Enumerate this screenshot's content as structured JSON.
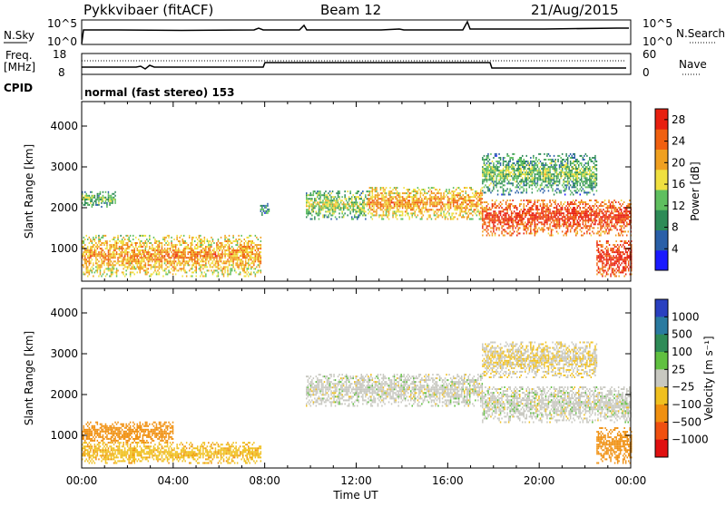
{
  "header": {
    "station": "Pykkvibaer (fitACF)",
    "beam": "Beam 12",
    "date": "21/Aug/2015"
  },
  "noise_panel": {
    "left_label": "N.Sky",
    "right_label": "N.Search",
    "left_ticks": [
      "10^5",
      "10^0"
    ],
    "right_ticks": [
      "10^5",
      "10^0"
    ]
  },
  "freq_panel": {
    "left_label_top": "Freq.",
    "left_label_bottom": "[MHz]",
    "right_label": "Nave",
    "left_ticks": [
      "18",
      "8"
    ],
    "right_ticks": [
      "60",
      "0"
    ]
  },
  "cpid": {
    "label": "CPID",
    "value": "normal (fast stereo) 153"
  },
  "colors": {
    "ground_scatter": "#c8c8c0",
    "power_scale": [
      "#1a1aff",
      "#2a5fa8",
      "#2e8b57",
      "#5fbf5f",
      "#f0e040",
      "#f0a020",
      "#f06010",
      "#e82010"
    ],
    "velocity_scale": [
      "#2a40c0",
      "#2a7aa0",
      "#2e8b57",
      "#60c040",
      "#c8c8c0",
      "#f0c020",
      "#f09010",
      "#f05010",
      "#e01010"
    ]
  },
  "chart_data": [
    {
      "type": "heatmap",
      "title": "",
      "ylabel": "Slant Range [km]",
      "xlabel": "",
      "xlim": [
        0,
        24
      ],
      "ylim": [
        200,
        4600
      ],
      "yticks": [
        "1000",
        "2000",
        "3000",
        "4000"
      ],
      "colorbar": {
        "label": "Power [dB]",
        "ticks": [
          "4",
          "8",
          "12",
          "16",
          "20",
          "24",
          "28"
        ],
        "range": [
          0,
          30
        ]
      },
      "echo_bands": [
        {
          "t_start": 0.0,
          "t_end": 7.8,
          "r_low": 300,
          "r_high": 1300,
          "mean_value": 16
        },
        {
          "t_start": 0.0,
          "t_end": 1.5,
          "r_low": 2000,
          "r_high": 2400,
          "mean_value": 8
        },
        {
          "t_start": 7.8,
          "t_end": 8.2,
          "r_low": 1800,
          "r_high": 2100,
          "mean_value": 6
        },
        {
          "t_start": 9.8,
          "t_end": 12.5,
          "r_low": 1700,
          "r_high": 2400,
          "mean_value": 10
        },
        {
          "t_start": 12.5,
          "t_end": 17.5,
          "r_low": 1700,
          "r_high": 2500,
          "mean_value": 16
        },
        {
          "t_start": 17.5,
          "t_end": 24.0,
          "r_low": 1300,
          "r_high": 2200,
          "mean_value": 22
        },
        {
          "t_start": 17.5,
          "t_end": 22.5,
          "r_low": 2300,
          "r_high": 3300,
          "mean_value": 8
        },
        {
          "t_start": 22.5,
          "t_end": 24.0,
          "r_low": 300,
          "r_high": 1200,
          "mean_value": 24
        }
      ]
    },
    {
      "type": "heatmap",
      "title": "",
      "ylabel": "Slant Range [km]",
      "xlabel": "Time UT",
      "xlim": [
        0,
        24
      ],
      "ylim": [
        200,
        4600
      ],
      "yticks": [
        "1000",
        "2000",
        "3000",
        "4000"
      ],
      "xticks": [
        "00:00",
        "04:00",
        "08:00",
        "12:00",
        "16:00",
        "20:00",
        "00:00"
      ],
      "colorbar": {
        "label": "Velocity [m s⁻¹]",
        "ticks": [
          "1000",
          "500",
          "100",
          "25",
          "−25",
          "−100",
          "−500",
          "−1000"
        ]
      },
      "echo_bands": [
        {
          "t_start": 0.0,
          "t_end": 4.0,
          "r_low": 800,
          "r_high": 1300,
          "mean_value": -150
        },
        {
          "t_start": 0.0,
          "t_end": 7.8,
          "r_low": 300,
          "r_high": 800,
          "mean_value": -80
        },
        {
          "t_start": 9.8,
          "t_end": 17.5,
          "r_low": 1700,
          "r_high": 2500,
          "mean_value": 0
        },
        {
          "t_start": 17.5,
          "t_end": 24.0,
          "r_low": 1300,
          "r_high": 2200,
          "mean_value": 0
        },
        {
          "t_start": 17.5,
          "t_end": 22.5,
          "r_low": 2400,
          "r_high": 3300,
          "mean_value": -20
        },
        {
          "t_start": 22.5,
          "t_end": 24.0,
          "r_low": 300,
          "r_high": 1200,
          "mean_value": -300
        }
      ]
    }
  ]
}
